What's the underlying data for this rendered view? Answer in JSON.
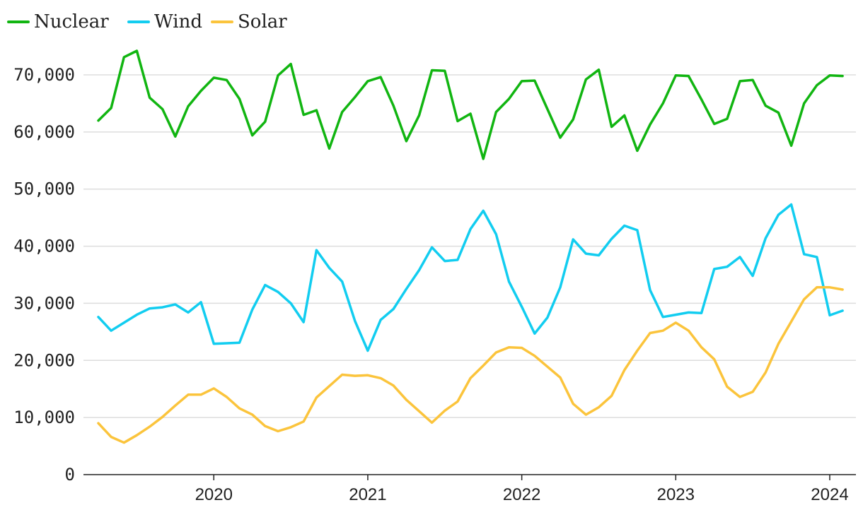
{
  "chart_data": {
    "type": "line",
    "title": "",
    "xlabel": "",
    "ylabel": "",
    "x_start": "2019-10",
    "x_ticks": [
      "2020",
      "2021",
      "2022",
      "2023",
      "2024"
    ],
    "y_ticks": [
      "0",
      "10,000",
      "20,000",
      "30,000",
      "40,000",
      "50,000",
      "60,000",
      "70,000"
    ],
    "ylim": [
      0,
      72000
    ],
    "grid": true,
    "legend_position": "top-left",
    "series": [
      {
        "name": "Nuclear",
        "color": "#11b511",
        "values": [
          62000,
          64200,
          73100,
          74200,
          66000,
          64000,
          59200,
          64500,
          67200,
          69500,
          69100,
          65800,
          59400,
          61800,
          69900,
          71900,
          63000,
          63800,
          57100,
          63500,
          66100,
          68900,
          69600,
          64600,
          58400,
          62900,
          70800,
          70700,
          61900,
          63200,
          55300,
          63500,
          65800,
          68900,
          69000,
          64000,
          59000,
          62200,
          69200,
          70900,
          60900,
          62900,
          56700,
          61300,
          65000,
          69900,
          69800,
          65700,
          61400,
          62300,
          68900,
          69100,
          64600,
          63400,
          57600,
          65000,
          68200,
          69900,
          69800
        ]
      },
      {
        "name": "Wind",
        "color": "#12cdf0",
        "values": [
          27600,
          25200,
          26600,
          28000,
          29100,
          29300,
          29800,
          28400,
          30200,
          22900,
          23000,
          23100,
          28900,
          33200,
          32000,
          30000,
          26700,
          39300,
          36200,
          33800,
          26900,
          21700,
          27100,
          29000,
          32500,
          35800,
          39800,
          37400,
          37600,
          43000,
          46200,
          42100,
          33800,
          29400,
          24700,
          27500,
          32800,
          41200,
          38700,
          38400,
          41300,
          43600,
          42800,
          32300,
          27600,
          28000,
          28400,
          28300,
          36000,
          36400,
          38100,
          34800,
          41400,
          45500,
          47300,
          38600,
          38100,
          27900,
          28700
        ]
      },
      {
        "name": "Solar",
        "color": "#fbc43c",
        "values": [
          9000,
          6600,
          5600,
          6900,
          8400,
          10100,
          12100,
          14000,
          14000,
          15100,
          13600,
          11600,
          10500,
          8500,
          7600,
          8300,
          9300,
          13500,
          15500,
          17500,
          17300,
          17400,
          16900,
          15600,
          13100,
          11100,
          9100,
          11200,
          12800,
          16900,
          19100,
          21400,
          22300,
          22200,
          20800,
          18900,
          17000,
          12400,
          10500,
          11800,
          13800,
          18300,
          21700,
          24800,
          25200,
          26600,
          25200,
          22300,
          20200,
          15400,
          13600,
          14500,
          17900,
          22900,
          26800,
          30700,
          32800,
          32800,
          32400
        ]
      }
    ]
  }
}
